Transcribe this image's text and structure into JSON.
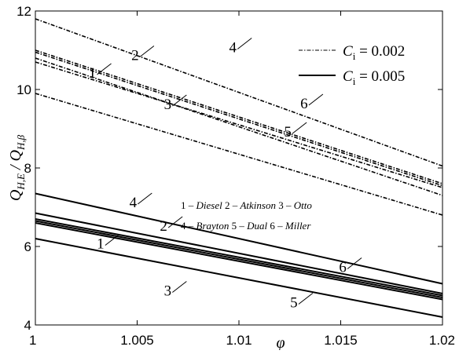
{
  "chart_data": {
    "type": "line",
    "xlabel": "φ",
    "ylabel_main": "Q",
    "ylabel_sub1": "H,E",
    "ylabel_sep": " / ",
    "ylabel_sub2": "H,β",
    "xlim": [
      1,
      1.02
    ],
    "ylim": [
      4,
      12
    ],
    "xticks": [
      1,
      1.005,
      1.01,
      1.015,
      1.02
    ],
    "xtick_labels": [
      "1",
      "1.005",
      "1.01",
      "1.015",
      "1.02"
    ],
    "yticks": [
      4,
      6,
      8,
      10,
      12
    ],
    "ytick_labels": [
      "4",
      "6",
      "8",
      "10",
      "12"
    ],
    "grid": false,
    "legend_position": "top-right",
    "legend": [
      {
        "style": "dash-dot",
        "var": "C",
        "sub": "i",
        "eq": " = 0.002"
      },
      {
        "style": "solid",
        "var": "C",
        "sub": "i",
        "eq": " = 0.005"
      }
    ],
    "annotation_lines": [
      [
        {
          "num": "1 – ",
          "name": "Diesel"
        },
        {
          "num": " 2 – ",
          "name": "Atkinson"
        },
        {
          "num": " 3 – ",
          "name": "Otto"
        }
      ],
      [
        {
          "num": "4 – ",
          "name": "Brayton"
        },
        {
          "num": " 5 – ",
          "name": "Dual"
        },
        {
          "num": " 6 – ",
          "name": "Miller"
        }
      ]
    ],
    "series": [
      {
        "group": "Ci=0.002",
        "style": "dash-dot",
        "id": "1",
        "x": [
          1,
          1.02
        ],
        "y": [
          10.7,
          7.5
        ]
      },
      {
        "group": "Ci=0.002",
        "style": "dash-dot",
        "id": "2",
        "x": [
          1,
          1.02
        ],
        "y": [
          11.0,
          7.6
        ]
      },
      {
        "group": "Ci=0.002",
        "style": "dash-dot",
        "id": "3",
        "x": [
          1,
          1.02
        ],
        "y": [
          9.9,
          6.8
        ]
      },
      {
        "group": "Ci=0.002",
        "style": "dash-dot",
        "id": "4",
        "x": [
          1,
          1.02
        ],
        "y": [
          11.8,
          8.05
        ]
      },
      {
        "group": "Ci=0.002",
        "style": "dash-dot",
        "id": "5",
        "x": [
          1,
          1.02
        ],
        "y": [
          10.8,
          7.3
        ]
      },
      {
        "group": "Ci=0.002",
        "style": "dash-dot",
        "id": "6",
        "x": [
          1,
          1.02
        ],
        "y": [
          10.95,
          7.55
        ]
      },
      {
        "group": "Ci=0.005",
        "style": "solid",
        "id": "1",
        "x": [
          1,
          1.02
        ],
        "y": [
          6.65,
          4.7
        ]
      },
      {
        "group": "Ci=0.005",
        "style": "solid",
        "id": "2",
        "x": [
          1,
          1.02
        ],
        "y": [
          6.85,
          4.8
        ]
      },
      {
        "group": "Ci=0.005",
        "style": "solid",
        "id": "3",
        "x": [
          1,
          1.02
        ],
        "y": [
          6.2,
          4.2
        ]
      },
      {
        "group": "Ci=0.005",
        "style": "solid",
        "id": "4",
        "x": [
          1,
          1.02
        ],
        "y": [
          7.35,
          5.05
        ]
      },
      {
        "group": "Ci=0.005",
        "style": "solid",
        "id": "5",
        "x": [
          1,
          1.02
        ],
        "y": [
          6.6,
          4.65
        ]
      },
      {
        "group": "Ci=0.005",
        "style": "solid",
        "id": "6",
        "x": [
          1,
          1.02
        ],
        "y": [
          6.7,
          4.75
        ]
      }
    ],
    "curve_labels": [
      {
        "text": "1",
        "group": "Ci=0.002",
        "at": [
          1.0028,
          10.3
        ]
      },
      {
        "text": "2",
        "group": "Ci=0.002",
        "at": [
          1.0049,
          10.75
        ]
      },
      {
        "text": "3",
        "group": "Ci=0.002",
        "at": [
          1.0065,
          9.5
        ]
      },
      {
        "text": "4",
        "group": "Ci=0.002",
        "at": [
          1.0097,
          10.95
        ]
      },
      {
        "text": "5",
        "group": "Ci=0.002",
        "at": [
          1.0124,
          8.8
        ]
      },
      {
        "text": "6",
        "group": "Ci=0.002",
        "at": [
          1.0132,
          9.52
        ]
      },
      {
        "text": "1",
        "group": "Ci=0.005",
        "at": [
          1.0032,
          5.95
        ]
      },
      {
        "text": "2",
        "group": "Ci=0.005",
        "at": [
          1.0063,
          6.4
        ]
      },
      {
        "text": "3",
        "group": "Ci=0.005",
        "at": [
          1.0065,
          4.75
        ]
      },
      {
        "text": "4",
        "group": "Ci=0.005",
        "at": [
          1.0048,
          7.0
        ]
      },
      {
        "text": "5",
        "group": "Ci=0.005",
        "at": [
          1.0127,
          4.45
        ]
      },
      {
        "text": "6",
        "group": "Ci=0.005",
        "at": [
          1.0151,
          5.35
        ]
      }
    ]
  }
}
